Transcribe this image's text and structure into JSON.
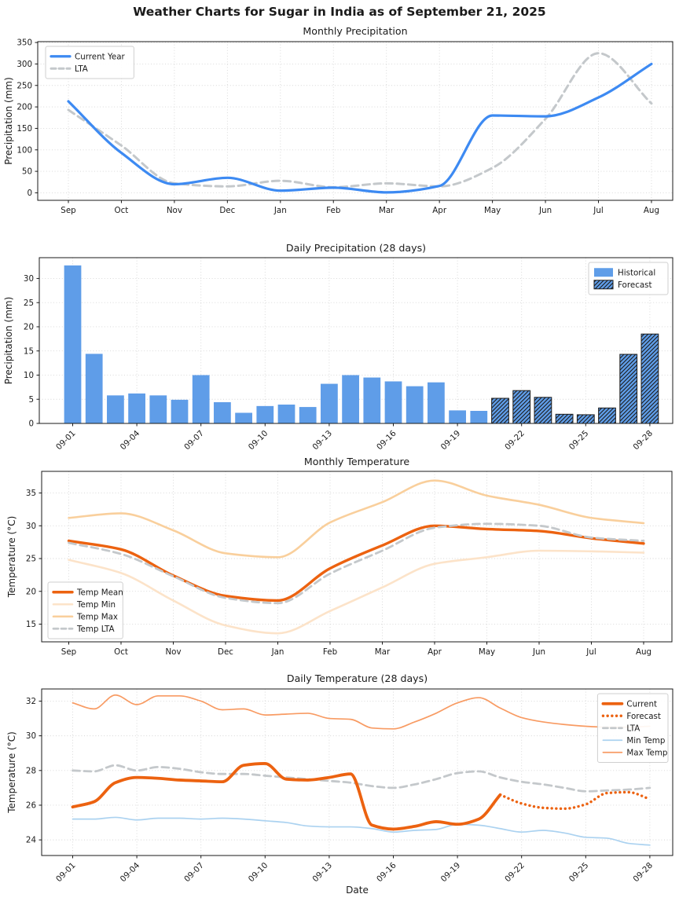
{
  "page": {
    "title": "Weather Charts for Sugar in India as of September 21, 2025"
  },
  "colors": {
    "current_year_blue": "#3d8af2",
    "bar_blue": "#5f9de8",
    "lta_gray": "#c4c8cb",
    "temp_orange": "#ec6210",
    "temp_min_pale": "#fce3c9",
    "temp_max_pale": "#f9cf9c",
    "daily_max_salmon": "#f89b63",
    "daily_min_lightblue": "#abd2f0",
    "hatch_black": "#1a1a1a"
  },
  "chart_data": [
    {
      "type": "line",
      "title": "Monthly Precipitation",
      "ylabel": "Precipitation (mm)",
      "categories": [
        "Sep",
        "Oct",
        "Nov",
        "Dec",
        "Jan",
        "Feb",
        "Mar",
        "Apr",
        "May",
        "Jun",
        "Jul",
        "Aug"
      ],
      "ylim": [
        -17.5,
        352
      ],
      "yticks": [
        0,
        50,
        100,
        150,
        200,
        250,
        300,
        350
      ],
      "grid": true,
      "legend_position": "upper-left",
      "series": [
        {
          "name": "Current Year",
          "color": "#3d8af2",
          "line": "solid",
          "width": 3.2,
          "z": 1,
          "values": [
            213,
            93,
            20,
            35,
            5,
            12,
            1,
            16,
            180,
            178,
            222,
            300
          ]
        },
        {
          "name": "LTA",
          "color": "#c4c8cb",
          "line": "dashed",
          "width": 3,
          "z": 0,
          "values": [
            193,
            110,
            22,
            15,
            28,
            13,
            22,
            15,
            58,
            172,
            325,
            208
          ]
        }
      ]
    },
    {
      "type": "bar",
      "title": "Daily Precipitation (28 days)",
      "ylabel": "Precipitation (mm)",
      "categories": [
        "09-01",
        "09-02",
        "09-03",
        "09-04",
        "09-05",
        "09-06",
        "09-07",
        "09-08",
        "09-09",
        "09-10",
        "09-11",
        "09-12",
        "09-13",
        "09-14",
        "09-15",
        "09-16",
        "09-17",
        "09-18",
        "09-19",
        "09-20",
        "09-21",
        "09-22",
        "09-23",
        "09-24",
        "09-25",
        "09-26",
        "09-27",
        "09-28"
      ],
      "xtick_every": 3,
      "ylim": [
        0,
        34.3
      ],
      "yticks": [
        0,
        5,
        10,
        15,
        20,
        25,
        30
      ],
      "grid": true,
      "legend_position": "upper-right",
      "series": [
        {
          "name": "Historical",
          "color": "#5f9de8",
          "hatch": false,
          "start_index": 0,
          "z": 0,
          "values": [
            32.7,
            14.4,
            5.8,
            6.2,
            5.8,
            4.9,
            10.0,
            4.4,
            2.2,
            3.6,
            3.9,
            3.4,
            8.2,
            10.0,
            9.5,
            8.7,
            7.7,
            8.5,
            2.7,
            2.6
          ]
        },
        {
          "name": "Forecast",
          "color": "#5f9de8",
          "hatch": true,
          "start_index": 20,
          "z": 0,
          "values": [
            5.2,
            6.8,
            5.4,
            1.9,
            1.8,
            3.2,
            14.3,
            18.5
          ]
        }
      ]
    },
    {
      "type": "line",
      "title": "Monthly Temperature",
      "ylabel": "Temperature (°C)",
      "categories": [
        "Sep",
        "Oct",
        "Nov",
        "Dec",
        "Jan",
        "Feb",
        "Mar",
        "Apr",
        "May",
        "Jun",
        "Jul",
        "Aug"
      ],
      "ylim": [
        12.3,
        38.3
      ],
      "yticks": [
        15,
        20,
        25,
        30,
        35
      ],
      "grid": true,
      "legend_position": "lower-left",
      "series": [
        {
          "name": "Temp Mean",
          "color": "#ec6210",
          "line": "solid",
          "width": 3.4,
          "z": 2,
          "values": [
            27.7,
            26.4,
            22.4,
            19.3,
            18.6,
            23.5,
            27.0,
            30.0,
            29.5,
            29.2,
            28.1,
            27.3
          ]
        },
        {
          "name": "Temp Min",
          "color": "#fce3c9",
          "line": "solid",
          "width": 2.6,
          "z": 0,
          "values": [
            24.8,
            22.8,
            18.6,
            14.8,
            13.6,
            17.0,
            20.6,
            24.2,
            25.2,
            26.2,
            26.1,
            25.9
          ]
        },
        {
          "name": "Temp Max",
          "color": "#f9cf9c",
          "line": "solid",
          "width": 2.6,
          "z": 0,
          "values": [
            31.2,
            31.9,
            29.3,
            25.8,
            25.2,
            30.5,
            33.6,
            36.9,
            34.6,
            33.2,
            31.2,
            30.4
          ]
        },
        {
          "name": "Temp LTA",
          "color": "#c4c8cb",
          "line": "dashed",
          "width": 2.8,
          "z": 3,
          "values": [
            27.4,
            25.7,
            22.3,
            19.0,
            18.2,
            22.7,
            26.2,
            29.7,
            30.3,
            30.0,
            28.2,
            27.7
          ]
        }
      ]
    },
    {
      "type": "line",
      "title": "Daily Temperature (28 days)",
      "ylabel": "Temperature (°C)",
      "xlabel": "Date",
      "categories": [
        "09-01",
        "09-02",
        "09-03",
        "09-04",
        "09-05",
        "09-06",
        "09-07",
        "09-08",
        "09-09",
        "09-10",
        "09-11",
        "09-12",
        "09-13",
        "09-14",
        "09-15",
        "09-16",
        "09-17",
        "09-18",
        "09-19",
        "09-20",
        "09-21",
        "09-22",
        "09-23",
        "09-24",
        "09-25",
        "09-26",
        "09-27",
        "09-28"
      ],
      "xtick_every": 3,
      "ylim": [
        23.1,
        32.7
      ],
      "yticks": [
        24,
        26,
        28,
        30,
        32
      ],
      "grid": true,
      "legend_position": "upper-right",
      "series": [
        {
          "name": "Current",
          "color": "#ec6210",
          "line": "solid",
          "width": 3.8,
          "start_index": 0,
          "z": 3,
          "values": [
            25.9,
            26.2,
            27.3,
            27.6,
            27.55,
            27.45,
            27.4,
            27.35,
            28.3,
            28.4,
            27.5,
            27.45,
            27.6,
            27.8,
            24.85,
            24.62,
            24.78,
            25.05,
            24.9,
            25.2,
            26.6
          ]
        },
        {
          "name": "Forecast",
          "color": "#ec6210",
          "line": "dotted",
          "width": 3.4,
          "start_index": 20,
          "z": 3,
          "values": [
            26.6,
            26.1,
            25.85,
            25.8,
            26.05,
            26.7,
            26.75,
            26.35
          ]
        },
        {
          "name": "LTA",
          "color": "#c4c8cb",
          "line": "dashed",
          "width": 2.8,
          "start_index": 0,
          "z": 2,
          "values": [
            28.0,
            27.95,
            28.3,
            28.0,
            28.2,
            28.1,
            27.9,
            27.8,
            27.8,
            27.7,
            27.6,
            27.5,
            27.4,
            27.3,
            27.1,
            27.0,
            27.2,
            27.5,
            27.85,
            27.95,
            27.6,
            27.35,
            27.2,
            27.0,
            26.8,
            26.85,
            26.9,
            27.0
          ]
        },
        {
          "name": "Min Temp",
          "color": "#abd2f0",
          "line": "solid",
          "width": 1.7,
          "start_index": 0,
          "z": 1,
          "values": [
            25.2,
            25.2,
            25.3,
            25.15,
            25.25,
            25.25,
            25.2,
            25.25,
            25.2,
            25.1,
            25.0,
            24.8,
            24.75,
            24.75,
            24.65,
            24.45,
            24.55,
            24.6,
            24.9,
            24.85,
            24.65,
            24.45,
            24.55,
            24.4,
            24.15,
            24.1,
            23.8,
            23.7
          ]
        },
        {
          "name": "Max Temp",
          "color": "#f89b63",
          "line": "solid",
          "width": 1.7,
          "start_index": 0,
          "z": 1,
          "values": [
            31.9,
            31.55,
            32.35,
            31.8,
            32.3,
            32.3,
            32.0,
            31.5,
            31.55,
            31.2,
            31.25,
            31.3,
            31.0,
            30.95,
            30.45,
            30.4,
            30.8,
            31.3,
            31.9,
            32.2,
            31.6,
            31.05,
            30.8,
            30.65,
            30.55,
            30.5,
            30.5,
            30.55
          ]
        }
      ]
    }
  ]
}
